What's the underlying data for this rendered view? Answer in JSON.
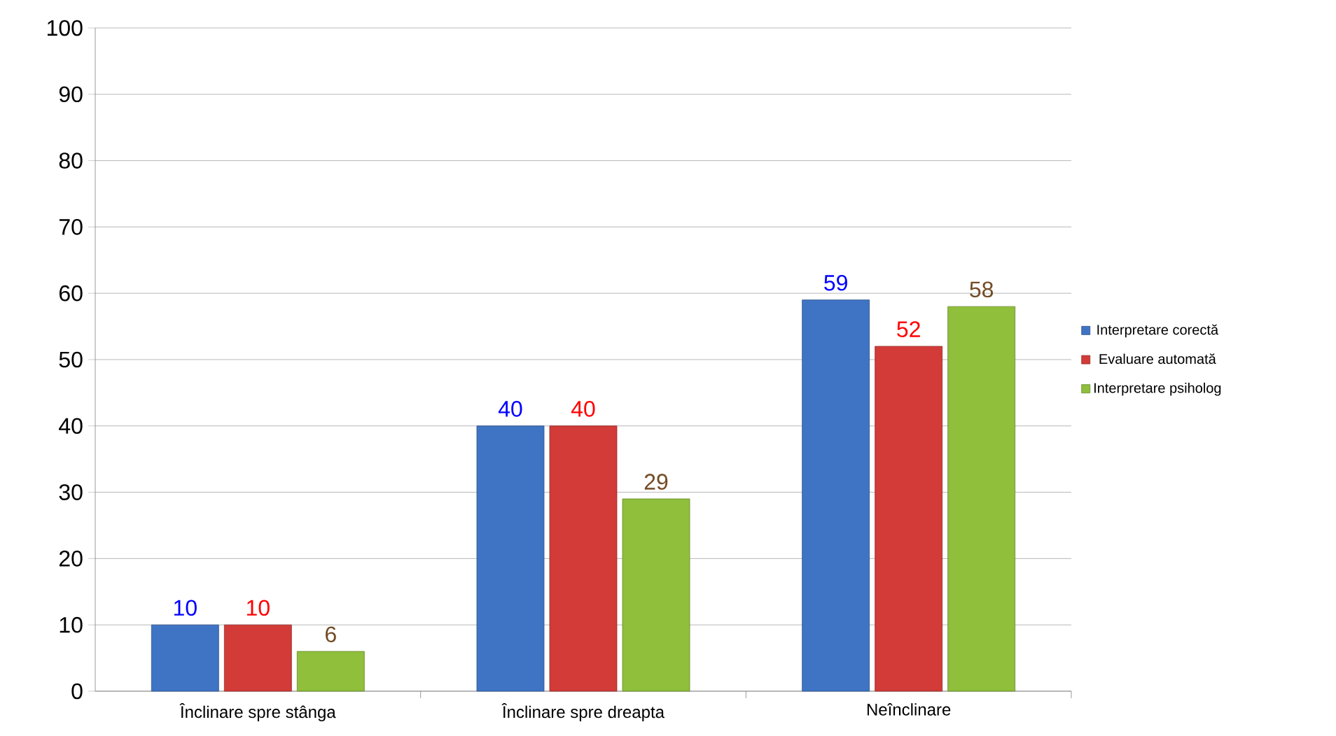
{
  "chart_data": {
    "type": "bar",
    "categories": [
      "Înclinare spre stânga",
      "Înclinare spre dreapta",
      "Neînclinare"
    ],
    "series": [
      {
        "name": "Interpretare corectă",
        "color": "#3f74c4",
        "values": [
          10,
          40,
          59
        ]
      },
      {
        "name": "Evaluare automată",
        "color": "#d23b38",
        "values": [
          10,
          40,
          52
        ]
      },
      {
        "name": "Interpretare psiholog",
        "color": "#8fbf3b",
        "values": [
          6,
          29,
          58
        ]
      }
    ],
    "ylim": [
      0,
      100
    ],
    "yticks": [
      0,
      10,
      20,
      30,
      40,
      50,
      60,
      70,
      80,
      90,
      100
    ],
    "grid": "y",
    "legend": "right",
    "data_labels": true
  }
}
